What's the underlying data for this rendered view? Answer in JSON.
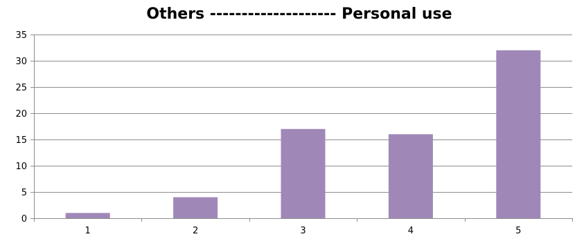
{
  "chart_data": {
    "type": "bar",
    "title": "Others -------------------- Personal use",
    "categories": [
      "1",
      "2",
      "3",
      "4",
      "5"
    ],
    "values": [
      1,
      4,
      17,
      16,
      32
    ],
    "ylim": [
      0,
      35
    ],
    "yticks": [
      0,
      5,
      10,
      15,
      20,
      25,
      30,
      35
    ],
    "xlabel": "",
    "ylabel": "",
    "grid": true,
    "legend": "none",
    "bar_color": "#9f88b7",
    "grid_color": "#8c8c8c"
  }
}
